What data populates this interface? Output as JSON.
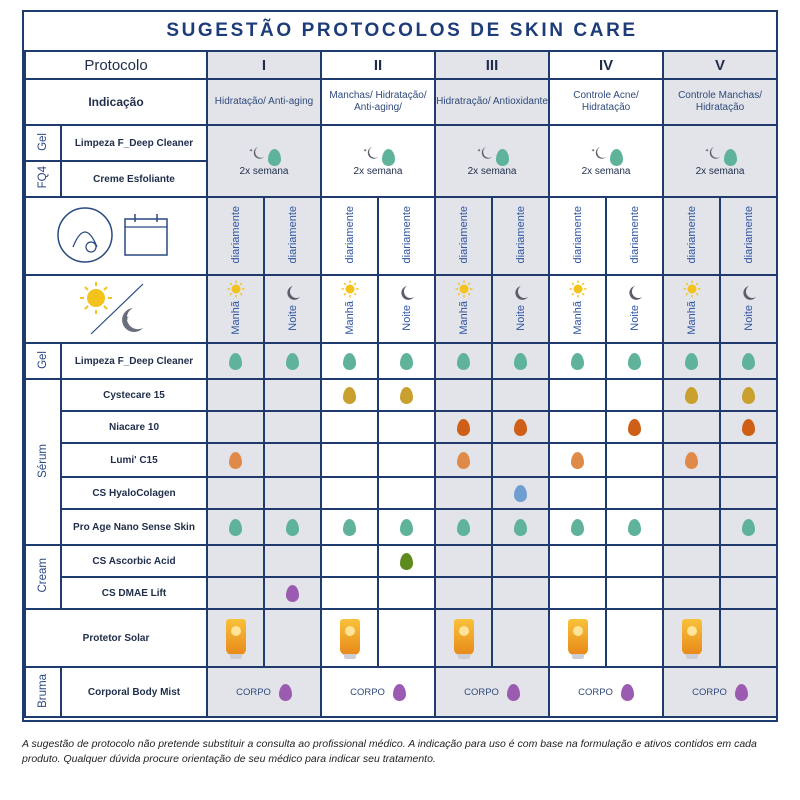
{
  "title": "SUGESTÃO PROTOCOLOS DE SKIN CARE",
  "header": {
    "protocol_label": "Protocolo",
    "indication_label": "Indicação",
    "protocols": [
      {
        "numeral": "I",
        "indication": "Hidratação/ Anti-aging"
      },
      {
        "numeral": "II",
        "indication": "Manchas/ Hidratação/ Anti-aging/"
      },
      {
        "numeral": "III",
        "indication": "Hidratração/ Antioxidante"
      },
      {
        "numeral": "IV",
        "indication": "Controle Acne/ Hidratação"
      },
      {
        "numeral": "V",
        "indication": "Controle Manchas/ Hidratação"
      }
    ]
  },
  "weekly": {
    "group_gel": "Gel",
    "group_fq4": "FQ4",
    "product_1": "Limpeza  F_Deep Cleaner",
    "product_2": "Creme Esfoliante",
    "frequency": "2x semana"
  },
  "schedule": {
    "daily": "diariamente",
    "morning": "Manhã",
    "night": "Noite"
  },
  "groups": {
    "gel": "Gel",
    "serum": "Sérum",
    "cream": "Cream",
    "bruma": "Bruma"
  },
  "products": {
    "deep_cleaner": "Limpeza  F_Deep Cleaner",
    "cystecare": "Cystecare 15",
    "niacare": "Niacare 10",
    "lumi": "Lumi' C15",
    "hyalo": "CS HyaloColagen",
    "proage": "Pro Age Nano Sense Skin",
    "ascorbic": "CS Ascorbic Acid",
    "dmae": "CS DMAE Lift",
    "sunscreen": "Protetor Solar",
    "bodymist": "Corporal Body Mist"
  },
  "corpo": "CORPO",
  "colors": {
    "teal": "#5fb39a",
    "gold": "#c9a02e",
    "orange": "#cf5f17",
    "lightorange": "#e08a4a",
    "blue": "#6f9fd1",
    "green": "#5c8a1c",
    "purple": "#9a5bb0",
    "border": "#1f3a6d"
  },
  "footer": "A sugestão de protocolo não pretende substituir a consulta ao profissional médico. A indicação para uso é com base  na formulação e ativos contidos em cada produto. Qualquer dúvida procure orientação de seu médico para indicar seu tratamento."
}
